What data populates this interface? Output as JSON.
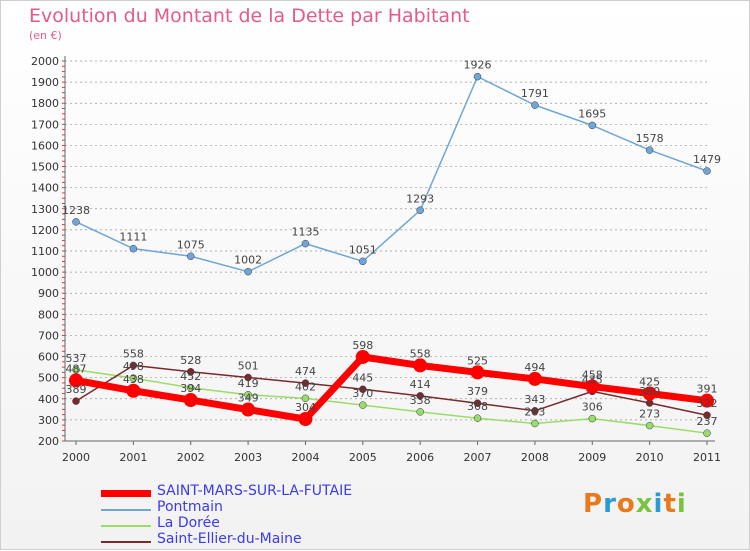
{
  "title": "Evolution du Montant de la Dette par Habitant",
  "subtitle": "(en €)",
  "logo": "Proxiti",
  "colors": {
    "title": "#e45a8a",
    "grid": "#999999",
    "legend_text": "#3a3af0"
  },
  "chart_data": {
    "type": "line",
    "x": [
      "2000",
      "2001",
      "2002",
      "2003",
      "2004",
      "2005",
      "2006",
      "2007",
      "2008",
      "2009",
      "2010",
      "2011"
    ],
    "ylim": [
      200,
      2000
    ],
    "yticks": [
      200,
      300,
      400,
      500,
      600,
      700,
      800,
      900,
      1000,
      1100,
      1200,
      1300,
      1400,
      1500,
      1600,
      1700,
      1800,
      1900,
      2000
    ],
    "grid": "horizontal dashed",
    "legend_position": "bottom-left",
    "series": [
      {
        "name": "SAINT-MARS-SUR-LA-FUTAIE",
        "color": "#ff0000",
        "width": 7,
        "values": [
          487,
          438,
          394,
          349,
          304,
          598,
          558,
          525,
          494,
          458,
          425,
          391
        ]
      },
      {
        "name": "Pontmain",
        "color": "#6fa6d6",
        "width": 1.5,
        "values": [
          1238,
          1111,
          1075,
          1002,
          1135,
          1051,
          1293,
          1926,
          1791,
          1695,
          1578,
          1479
        ]
      },
      {
        "name": "La Dorée",
        "color": "#99dd66",
        "width": 1.5,
        "values": [
          537,
          498,
          452,
          419,
          402,
          370,
          338,
          308,
          283,
          306,
          273,
          237
        ]
      },
      {
        "name": "Saint-Ellier-du-Maine",
        "color": "#7a2a2a",
        "width": 1.5,
        "values": [
          389,
          558,
          528,
          501,
          474,
          445,
          414,
          379,
          343,
          435,
          380,
          322
        ]
      }
    ]
  }
}
